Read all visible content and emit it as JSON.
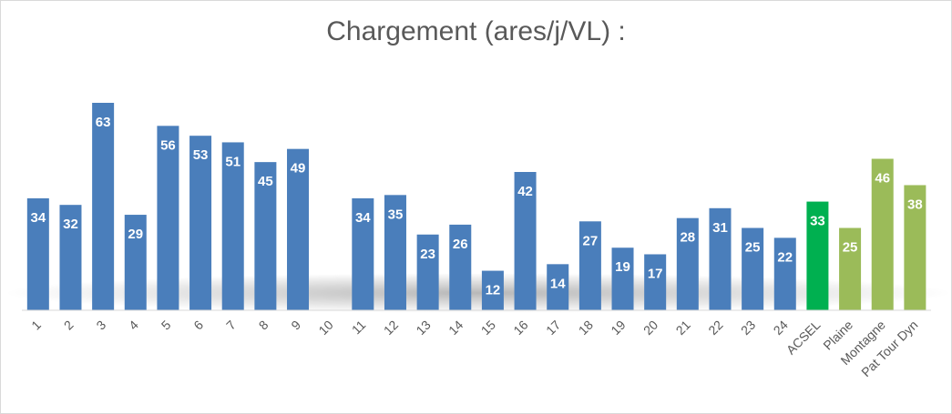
{
  "chart_data": {
    "type": "bar",
    "title": "Chargement (ares/j/VL) :",
    "xlabel": "",
    "ylabel": "",
    "ylim": [
      0,
      70
    ],
    "grid": false,
    "legend": "none",
    "categories": [
      "1",
      "2",
      "3",
      "4",
      "5",
      "6",
      "7",
      "8",
      "9",
      "10",
      "11",
      "12",
      "13",
      "14",
      "15",
      "16",
      "17",
      "18",
      "19",
      "20",
      "21",
      "22",
      "23",
      "24",
      "ACSEL",
      "Plaine",
      "Montagne",
      "Pat Tour Dyn"
    ],
    "values": [
      34,
      32,
      63,
      29,
      56,
      53,
      51,
      45,
      49,
      null,
      34,
      35,
      23,
      26,
      12,
      42,
      14,
      27,
      19,
      17,
      28,
      31,
      25,
      22,
      33,
      25,
      46,
      38
    ],
    "bar_colors": [
      "#4a7ebb",
      "#4a7ebb",
      "#4a7ebb",
      "#4a7ebb",
      "#4a7ebb",
      "#4a7ebb",
      "#4a7ebb",
      "#4a7ebb",
      "#4a7ebb",
      "#4a7ebb",
      "#4a7ebb",
      "#4a7ebb",
      "#4a7ebb",
      "#4a7ebb",
      "#4a7ebb",
      "#4a7ebb",
      "#4a7ebb",
      "#4a7ebb",
      "#4a7ebb",
      "#4a7ebb",
      "#4a7ebb",
      "#4a7ebb",
      "#4a7ebb",
      "#4a7ebb",
      "#00b050",
      "#9bbb59",
      "#9bbb59",
      "#9bbb59"
    ]
  }
}
